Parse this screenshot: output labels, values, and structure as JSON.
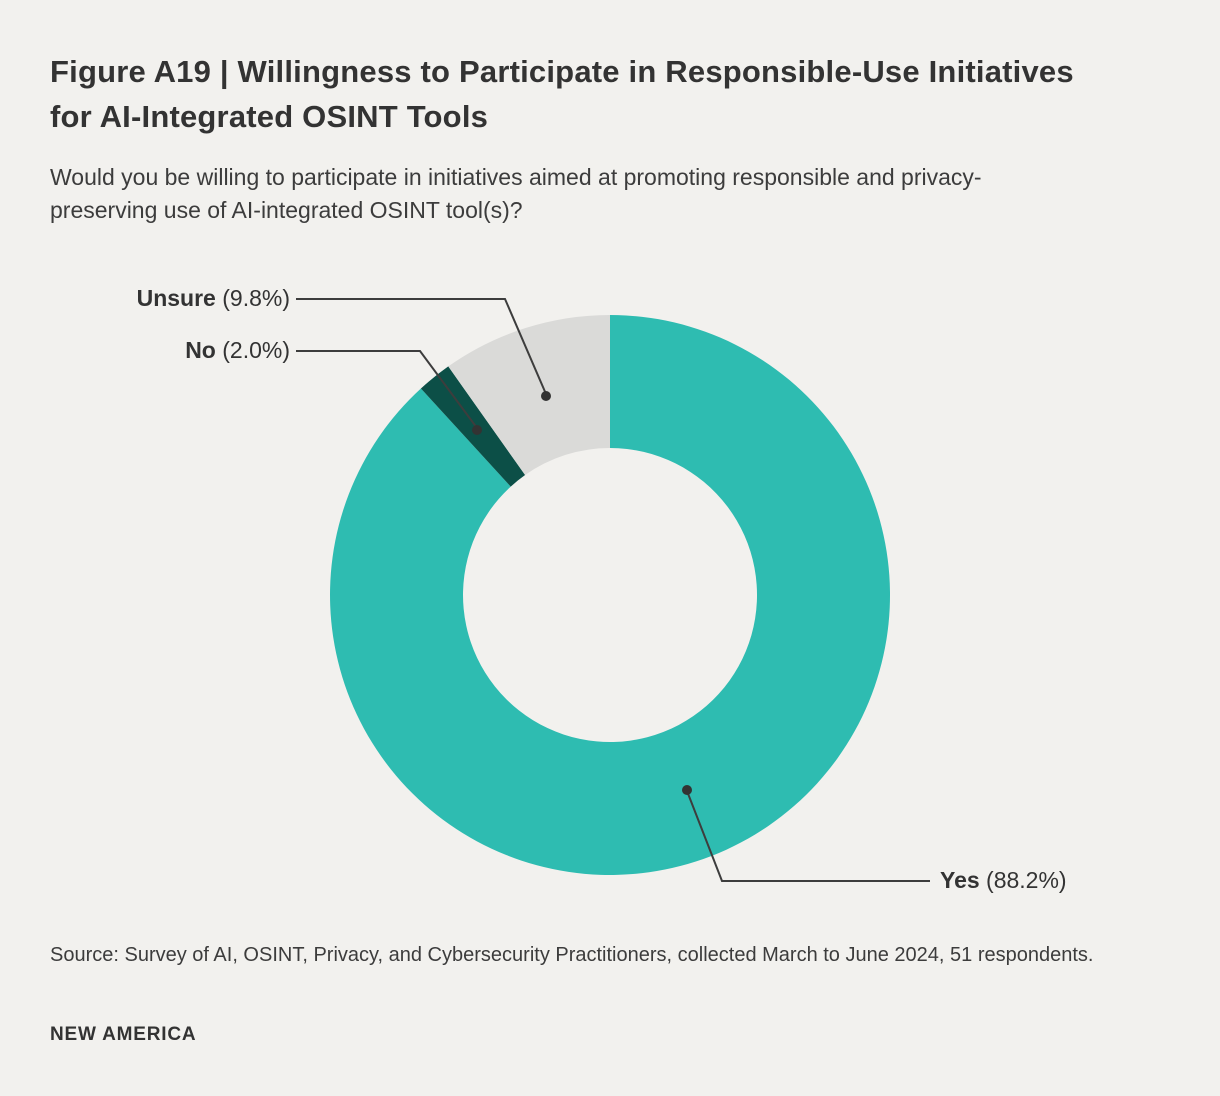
{
  "colors": {
    "background": "#f2f1ee",
    "text": "#3a3a3a",
    "leader_line": "#3d3d3d",
    "accent_teal": "#2ebcb1",
    "accent_dark_teal": "#0c4f47",
    "accent_gray": "#dadad8"
  },
  "header": {
    "figure_title": "Figure A19 | Willingness to Participate in Responsible-Use Initiatives for AI-Integrated OSINT Tools",
    "subtitle": "Would you be willing to participate in initiatives aimed at promoting responsible and privacy-preserving use of AI-integrated OSINT tool(s)?"
  },
  "chart_data": {
    "type": "pie",
    "subtype": "donut",
    "title": "Figure A19 | Willingness to Participate in Responsible-Use Initiatives for AI-Integrated OSINT Tools",
    "question": "Would you be willing to participate in initiatives aimed at promoting responsible and privacy-preserving use of AI-integrated OSINT tool(s)?",
    "unit": "%",
    "sample_size": 51,
    "start_angle_deg": 0,
    "direction": "clockwise",
    "inner_radius_ratio": 0.525,
    "legend_position": "callout-labels",
    "segments": [
      {
        "label": "Yes",
        "value": 88.2,
        "display": "(88.2%)",
        "color": "#2ebcb1"
      },
      {
        "label": "No",
        "value": 2.0,
        "display": "(2.0%)",
        "color": "#0c4f47"
      },
      {
        "label": "Unsure",
        "value": 9.8,
        "display": "(9.8%)",
        "color": "#dadad8"
      }
    ]
  },
  "footer": {
    "source": "Source: Survey of AI, OSINT, Privacy, and Cybersecurity Practitioners, collected March to June 2024, 51 respondents.",
    "brand": "NEW AMERICA"
  }
}
